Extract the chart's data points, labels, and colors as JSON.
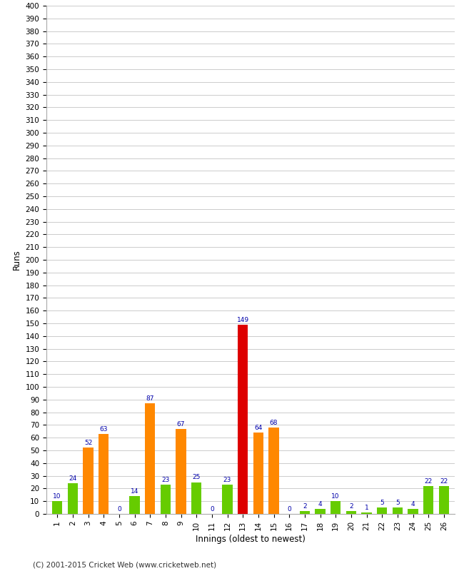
{
  "innings": [
    1,
    2,
    3,
    4,
    5,
    6,
    7,
    8,
    9,
    10,
    11,
    12,
    13,
    14,
    15,
    16,
    17,
    18,
    19,
    20,
    21,
    22,
    23,
    24,
    25,
    26
  ],
  "values": [
    10,
    24,
    52,
    63,
    0,
    14,
    87,
    23,
    67,
    25,
    0,
    23,
    149,
    64,
    68,
    0,
    2,
    4,
    10,
    2,
    1,
    5,
    5,
    4,
    22,
    22
  ],
  "colors": [
    "#66cc00",
    "#66cc00",
    "#ff8800",
    "#ff8800",
    "#66cc00",
    "#66cc00",
    "#ff8800",
    "#66cc00",
    "#ff8800",
    "#66cc00",
    "#66cc00",
    "#66cc00",
    "#dd0000",
    "#ff8800",
    "#ff8800",
    "#66cc00",
    "#66cc00",
    "#66cc00",
    "#66cc00",
    "#66cc00",
    "#66cc00",
    "#66cc00",
    "#66cc00",
    "#66cc00",
    "#66cc00",
    "#66cc00"
  ],
  "xlabel": "Innings (oldest to newest)",
  "ylabel": "Runs",
  "yticks": [
    0,
    10,
    20,
    30,
    40,
    50,
    60,
    70,
    80,
    90,
    100,
    110,
    120,
    130,
    140,
    150,
    160,
    170,
    180,
    190,
    200,
    210,
    220,
    230,
    240,
    250,
    260,
    270,
    280,
    290,
    300,
    310,
    320,
    330,
    340,
    350,
    360,
    370,
    380,
    390,
    400
  ],
  "ylim": [
    0,
    400
  ],
  "footer": "(C) 2001-2015 Cricket Web (www.cricketweb.net)",
  "label_color": "#0000aa",
  "background_color": "#ffffff",
  "grid_color": "#cccccc",
  "bar_width": 0.65
}
